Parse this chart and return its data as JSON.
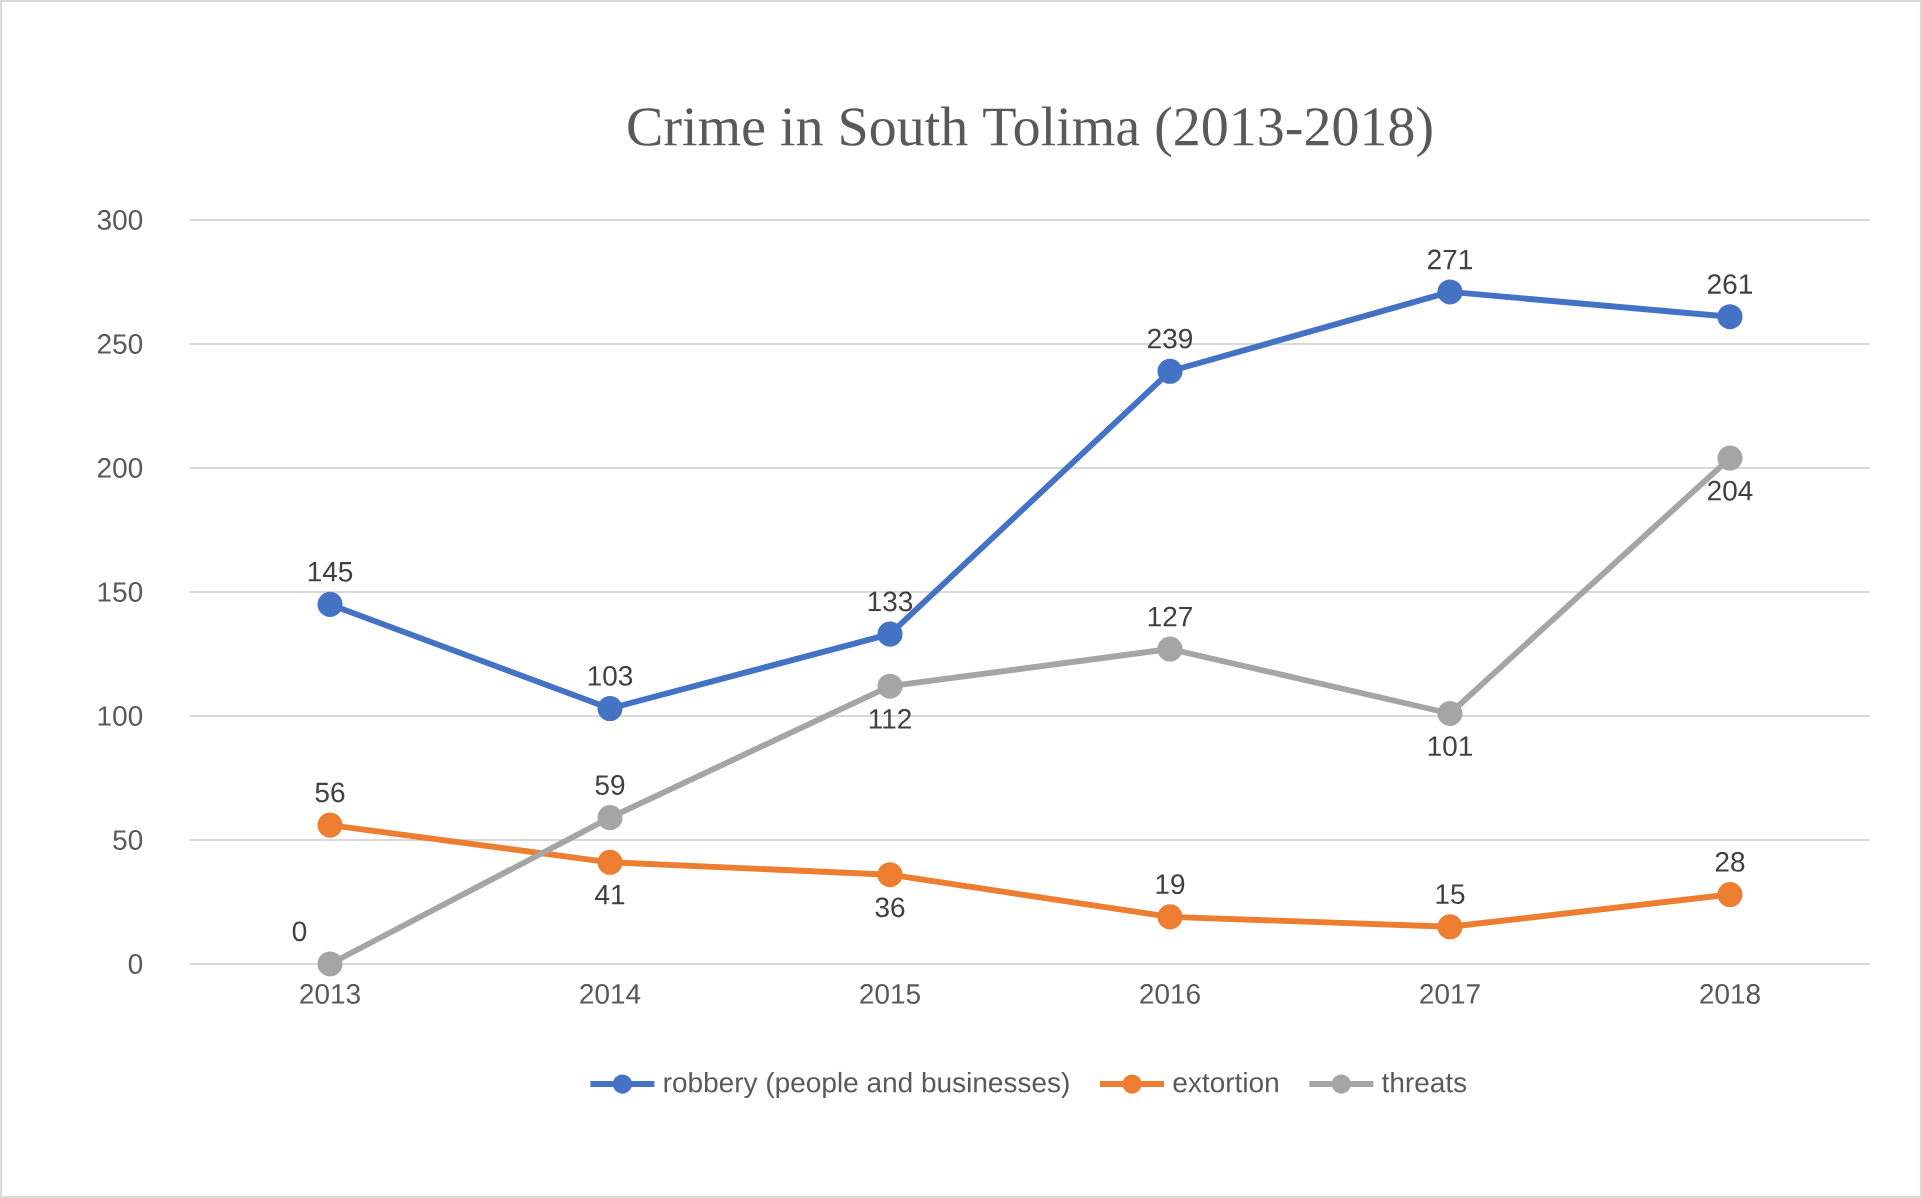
{
  "chart_data": {
    "type": "line",
    "title": "Crime in South Tolima (2013-2018)",
    "categories": [
      "2013",
      "2014",
      "2015",
      "2016",
      "2017",
      "2018"
    ],
    "series": [
      {
        "name": "robbery (people and businesses)",
        "color": "#4472c4",
        "values": [
          145,
          103,
          133,
          239,
          271,
          261
        ]
      },
      {
        "name": "extortion",
        "color": "#ed7d31",
        "values": [
          56,
          41,
          36,
          19,
          15,
          28
        ]
      },
      {
        "name": "threats",
        "color": "#a5a5a5",
        "values": [
          0,
          59,
          112,
          127,
          101,
          204
        ]
      }
    ],
    "ylim": [
      0,
      300
    ],
    "yticks": [
      0,
      50,
      100,
      150,
      200,
      250,
      300
    ],
    "grid": "y",
    "legend": "bottom",
    "marker": "circle",
    "line_style": "solid",
    "data_labels": true
  }
}
